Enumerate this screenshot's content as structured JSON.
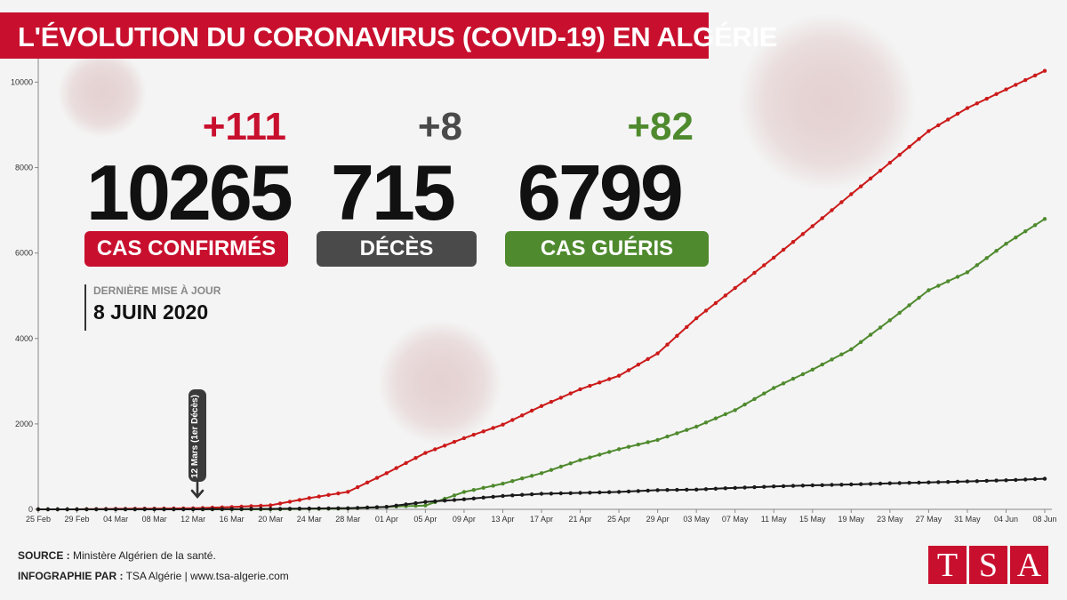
{
  "title": "L'ÉVOLUTION DU CORONAVIRUS (COVID-19) EN ALGÉRIE",
  "stats": {
    "confirmed": {
      "delta": "+111",
      "value": "10265",
      "label": "CAS CONFIRMÉS",
      "color": "#c8102e"
    },
    "deaths": {
      "delta": "+8",
      "value": "715",
      "label": "DÉCÈS",
      "color": "#4a4a4a"
    },
    "recovered": {
      "delta": "+82",
      "value": "6799",
      "label": "CAS GUÉRIS",
      "color": "#4f8a2e"
    }
  },
  "update": {
    "label": "DERNIÈRE MISE À JOUR",
    "date": "8 JUIN 2020"
  },
  "annotation": "12 Mars (1er Décès)",
  "footer": {
    "source_label": "SOURCE :",
    "source_text": "Ministère Algérien de la santé.",
    "credit_label": "INFOGRAPHIE PAR :",
    "credit_text": "TSA Algérie | www.tsa-algerie.com"
  },
  "logo": [
    "T",
    "S",
    "A"
  ],
  "colors": {
    "accent": "#c8102e",
    "confirmed_line": "#cc1a1a",
    "recovered_line": "#4f8a2e",
    "deaths_line": "#1a1a1a"
  },
  "chart_data": {
    "type": "line",
    "x_tick_labels": [
      "25 Feb",
      "29 Feb",
      "04 Mar",
      "08 Mar",
      "12 Mar",
      "16 Mar",
      "20 Mar",
      "24 Mar",
      "28 Mar",
      "01 Apr",
      "05 Apr",
      "09 Apr",
      "13 Apr",
      "17 Apr",
      "21 Apr",
      "25 Apr",
      "29 Apr",
      "03 May",
      "07 May",
      "11 May",
      "15 May",
      "19 May",
      "23 May",
      "27 May",
      "31 May",
      "04 Jun",
      "08 Jun"
    ],
    "x_tick_step_days": 4,
    "y_ticks": [
      0,
      2000,
      4000,
      6000,
      8000,
      10000
    ],
    "ylim": [
      0,
      10800
    ],
    "xlim": [
      "25 Feb",
      "08 Jun"
    ],
    "series": [
      {
        "key": "confirmed",
        "color": "#cc1a1a",
        "points": [
          [
            "25 Feb",
            1
          ],
          [
            "29 Feb",
            1
          ],
          [
            "04 Mar",
            12
          ],
          [
            "08 Mar",
            17
          ],
          [
            "12 Mar",
            24
          ],
          [
            "16 Mar",
            54
          ],
          [
            "20 Mar",
            94
          ],
          [
            "24 Mar",
            264
          ],
          [
            "28 Mar",
            409
          ],
          [
            "01 Apr",
            847
          ],
          [
            "05 Apr",
            1320
          ],
          [
            "09 Apr",
            1666
          ],
          [
            "13 Apr",
            1983
          ],
          [
            "17 Apr",
            2418
          ],
          [
            "21 Apr",
            2811
          ],
          [
            "25 Apr",
            3127
          ],
          [
            "29 Apr",
            3649
          ],
          [
            "03 May",
            4474
          ],
          [
            "07 May",
            5182
          ],
          [
            "11 May",
            5891
          ],
          [
            "15 May",
            6629
          ],
          [
            "19 May",
            7377
          ],
          [
            "23 May",
            8113
          ],
          [
            "27 May",
            8857
          ],
          [
            "31 May",
            9394
          ],
          [
            "04 Jun",
            9831
          ],
          [
            "08 Jun",
            10265
          ]
        ]
      },
      {
        "key": "recovered",
        "color": "#4f8a2e",
        "points": [
          [
            "25 Feb",
            0
          ],
          [
            "12 Mar",
            0
          ],
          [
            "20 Mar",
            0
          ],
          [
            "28 Mar",
            20
          ],
          [
            "01 Apr",
            58
          ],
          [
            "05 Apr",
            90
          ],
          [
            "09 Apr",
            405
          ],
          [
            "13 Apr",
            601
          ],
          [
            "17 Apr",
            846
          ],
          [
            "21 Apr",
            1152
          ],
          [
            "25 Apr",
            1408
          ],
          [
            "29 Apr",
            1626
          ],
          [
            "03 May",
            1936
          ],
          [
            "07 May",
            2323
          ],
          [
            "11 May",
            2841
          ],
          [
            "15 May",
            3271
          ],
          [
            "19 May",
            3746
          ],
          [
            "23 May",
            4426
          ],
          [
            "27 May",
            5129
          ],
          [
            "31 May",
            5549
          ],
          [
            "04 Jun",
            6218
          ],
          [
            "08 Jun",
            6799
          ]
        ]
      },
      {
        "key": "deaths",
        "color": "#1a1a1a",
        "points": [
          [
            "25 Feb",
            0
          ],
          [
            "12 Mar",
            1
          ],
          [
            "20 Mar",
            11
          ],
          [
            "24 Mar",
            19
          ],
          [
            "28 Mar",
            26
          ],
          [
            "01 Apr",
            58
          ],
          [
            "05 Apr",
            173
          ],
          [
            "09 Apr",
            235
          ],
          [
            "13 Apr",
            313
          ],
          [
            "17 Apr",
            364
          ],
          [
            "21 Apr",
            384
          ],
          [
            "25 Apr",
            407
          ],
          [
            "29 Apr",
            450
          ],
          [
            "03 May",
            463
          ],
          [
            "07 May",
            502
          ],
          [
            "11 May",
            536
          ],
          [
            "15 May",
            561
          ],
          [
            "19 May",
            582
          ],
          [
            "23 May",
            609
          ],
          [
            "27 May",
            630
          ],
          [
            "31 May",
            653
          ],
          [
            "04 Jun",
            681
          ],
          [
            "08 Jun",
            715
          ]
        ]
      }
    ]
  }
}
